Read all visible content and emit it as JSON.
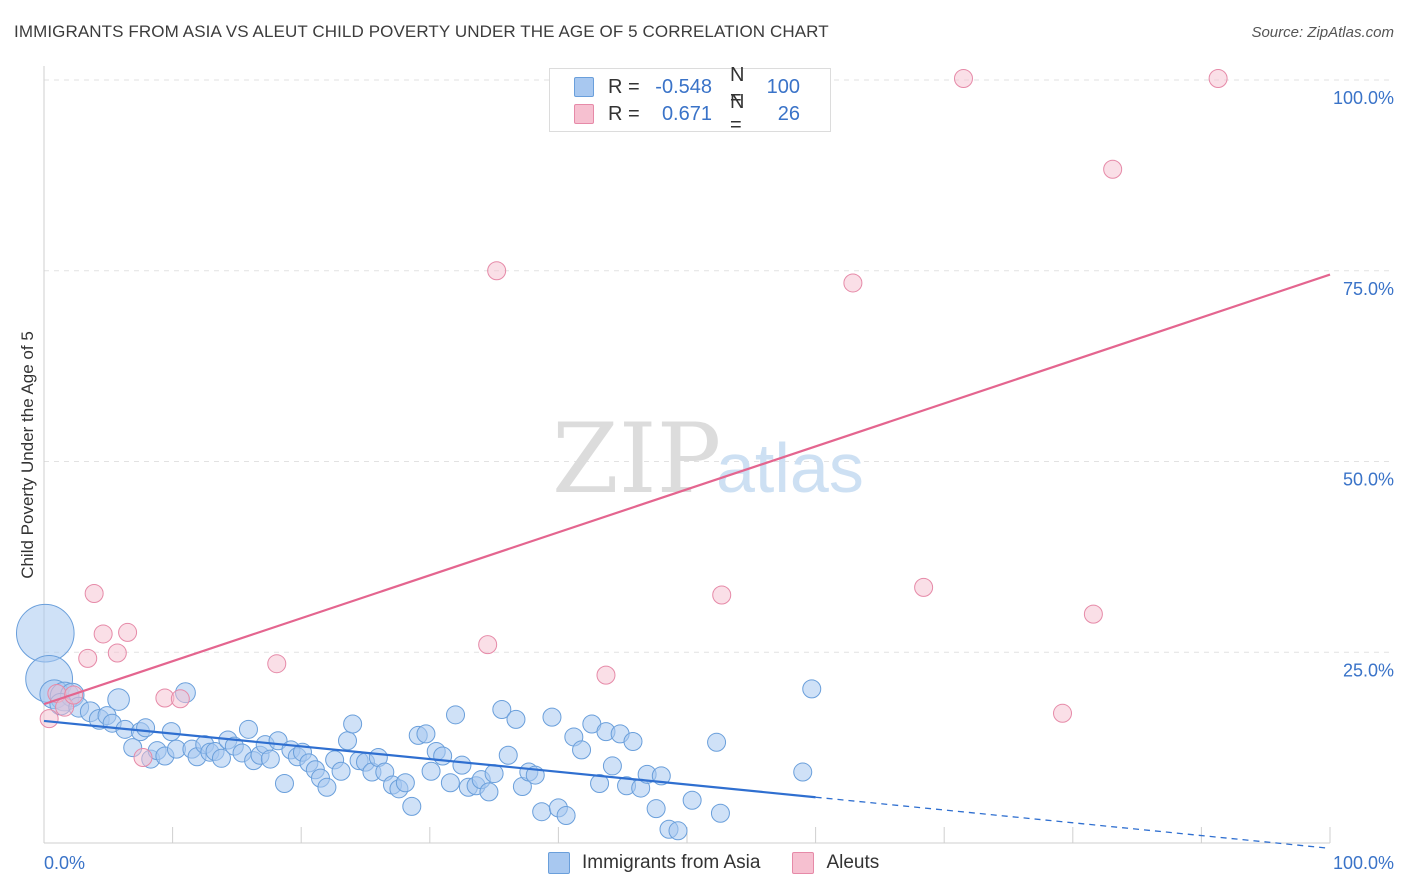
{
  "header": {
    "title": "IMMIGRANTS FROM ASIA VS ALEUT CHILD POVERTY UNDER THE AGE OF 5 CORRELATION CHART",
    "source": "Source: ZipAtlas.com"
  },
  "watermark": {
    "zip": "ZIP",
    "atlas": "atlas"
  },
  "legend_top": {
    "r_label": "R =",
    "n_label": "N =",
    "rows": [
      {
        "r": "-0.548",
        "n": "100"
      },
      {
        "r": "0.671",
        "n": "26"
      }
    ]
  },
  "colors": {
    "asia_fill": "#a8c8f0",
    "asia_stroke": "#6a9fdb",
    "asia_line": "#2f6fd0",
    "aleut_fill": "#f6c0d0",
    "aleut_stroke": "#e68aa8",
    "aleut_line": "#e4658f",
    "tick_label": "#3a73c8",
    "grid": "#e2e2e2"
  },
  "chart_data": {
    "type": "scatter",
    "title": "IMMIGRANTS FROM ASIA VS ALEUT CHILD POVERTY UNDER THE AGE OF 5 CORRELATION CHART",
    "xlabel": "",
    "ylabel": "Child Poverty Under the Age of 5",
    "xlim": [
      0,
      100
    ],
    "ylim": [
      0,
      100
    ],
    "x_tick_labels": [
      "0.0%",
      "100.0%"
    ],
    "y_ticks": [
      25,
      50,
      75,
      100
    ],
    "y_tick_labels": [
      "25.0%",
      "50.0%",
      "75.0%",
      "100.0%"
    ],
    "grid": true,
    "legend_position": "bottom-center",
    "series": [
      {
        "name": "Immigrants from Asia",
        "r": -0.548,
        "n": 100,
        "trend": {
          "x0": 0,
          "y0": 16.0,
          "x1": 60,
          "y1": 6.0,
          "dash_to_x": 100,
          "dash_to_y": -0.7
        },
        "points": [
          [
            0.1,
            27.5,
            3.2
          ],
          [
            0.4,
            21.5,
            2.6
          ],
          [
            0.8,
            19.5,
            1.6
          ],
          [
            1.6,
            19.2,
            1.6
          ],
          [
            2.2,
            19.4,
            1.3
          ],
          [
            1.3,
            18.2,
            1.2
          ],
          [
            2.7,
            17.8,
            1.1
          ],
          [
            3.6,
            17.2,
            1.1
          ],
          [
            4.3,
            16.2,
            1.1
          ],
          [
            4.9,
            16.7,
            1.0
          ],
          [
            5.3,
            15.7,
            1.0
          ],
          [
            5.8,
            18.8,
            1.2
          ],
          [
            6.3,
            14.9,
            1.0
          ],
          [
            6.9,
            12.5,
            1.0
          ],
          [
            7.5,
            14.6,
            1.0
          ],
          [
            7.9,
            15.1,
            1.0
          ],
          [
            8.3,
            11.0,
            1.0
          ],
          [
            8.8,
            12.1,
            1.0
          ],
          [
            9.4,
            11.4,
            1.0
          ],
          [
            9.9,
            14.6,
            1.0
          ],
          [
            10.3,
            12.3,
            1.0
          ],
          [
            11.0,
            19.7,
            1.1
          ],
          [
            11.5,
            12.3,
            1.0
          ],
          [
            11.9,
            11.3,
            1.0
          ],
          [
            12.5,
            12.9,
            1.0
          ],
          [
            12.9,
            11.9,
            1.0
          ],
          [
            13.3,
            12.0,
            1.0
          ],
          [
            13.8,
            11.1,
            1.0
          ],
          [
            14.3,
            13.5,
            1.0
          ],
          [
            14.8,
            12.7,
            1.0
          ],
          [
            15.4,
            11.8,
            1.0
          ],
          [
            15.9,
            14.9,
            1.0
          ],
          [
            16.3,
            10.8,
            1.0
          ],
          [
            16.8,
            11.5,
            1.0
          ],
          [
            17.2,
            12.9,
            1.0
          ],
          [
            17.6,
            11.0,
            1.0
          ],
          [
            18.2,
            13.4,
            1.0
          ],
          [
            18.7,
            7.8,
            1.0
          ],
          [
            19.2,
            12.2,
            1.0
          ],
          [
            19.7,
            11.3,
            1.0
          ],
          [
            20.1,
            11.9,
            1.0
          ],
          [
            20.6,
            10.5,
            1.0
          ],
          [
            21.1,
            9.6,
            1.0
          ],
          [
            21.5,
            8.5,
            1.0
          ],
          [
            22.0,
            7.3,
            1.0
          ],
          [
            22.6,
            10.9,
            1.0
          ],
          [
            23.1,
            9.4,
            1.0
          ],
          [
            23.6,
            13.4,
            1.0
          ],
          [
            24.0,
            15.6,
            1.0
          ],
          [
            24.5,
            10.8,
            1.0
          ],
          [
            25.0,
            10.6,
            1.0
          ],
          [
            25.5,
            9.3,
            1.0
          ],
          [
            26.0,
            11.2,
            1.0
          ],
          [
            26.5,
            9.3,
            1.0
          ],
          [
            27.1,
            7.6,
            1.0
          ],
          [
            27.6,
            7.1,
            1.0
          ],
          [
            28.1,
            7.9,
            1.0
          ],
          [
            28.6,
            4.8,
            1.0
          ],
          [
            29.1,
            14.1,
            1.0
          ],
          [
            29.7,
            14.3,
            1.0
          ],
          [
            30.1,
            9.4,
            1.0
          ],
          [
            30.5,
            12.0,
            1.0
          ],
          [
            31.0,
            11.4,
            1.0
          ],
          [
            31.6,
            7.9,
            1.0
          ],
          [
            32.0,
            16.8,
            1.0
          ],
          [
            32.5,
            10.2,
            1.0
          ],
          [
            33.0,
            7.3,
            1.0
          ],
          [
            33.6,
            7.5,
            1.0
          ],
          [
            34.0,
            8.3,
            1.0
          ],
          [
            34.6,
            6.7,
            1.0
          ],
          [
            35.0,
            9.1,
            1.0
          ],
          [
            35.6,
            17.5,
            1.0
          ],
          [
            36.1,
            11.5,
            1.0
          ],
          [
            36.7,
            16.2,
            1.0
          ],
          [
            37.2,
            7.4,
            1.0
          ],
          [
            37.7,
            9.3,
            1.0
          ],
          [
            38.2,
            8.9,
            1.0
          ],
          [
            38.7,
            4.1,
            1.0
          ],
          [
            39.5,
            16.5,
            1.0
          ],
          [
            40.0,
            4.6,
            1.0
          ],
          [
            40.6,
            3.6,
            1.0
          ],
          [
            41.2,
            13.9,
            1.0
          ],
          [
            41.8,
            12.2,
            1.0
          ],
          [
            42.6,
            15.6,
            1.0
          ],
          [
            43.2,
            7.8,
            1.0
          ],
          [
            43.7,
            14.6,
            1.0
          ],
          [
            44.2,
            10.1,
            1.0
          ],
          [
            44.8,
            14.3,
            1.0
          ],
          [
            45.3,
            7.5,
            1.0
          ],
          [
            45.8,
            13.3,
            1.0
          ],
          [
            46.4,
            7.2,
            1.0
          ],
          [
            46.9,
            9.0,
            1.0
          ],
          [
            47.6,
            4.5,
            1.0
          ],
          [
            48.0,
            8.8,
            1.0
          ],
          [
            48.6,
            1.8,
            1.0
          ],
          [
            49.3,
            1.6,
            1.0
          ],
          [
            50.4,
            5.6,
            1.0
          ],
          [
            52.3,
            13.2,
            1.0
          ],
          [
            52.6,
            3.9,
            1.0
          ],
          [
            59.0,
            9.3,
            1.0
          ],
          [
            59.7,
            20.2,
            1.0
          ]
        ]
      },
      {
        "name": "Aleuts",
        "r": 0.671,
        "n": 26,
        "trend": {
          "x0": 0,
          "y0": 18.2,
          "x1": 100,
          "y1": 74.5
        },
        "points": [
          [
            0.4,
            16.3,
            1.0
          ],
          [
            1.0,
            19.6,
            1.0
          ],
          [
            1.6,
            17.8,
            1.0
          ],
          [
            2.3,
            19.4,
            1.0
          ],
          [
            3.4,
            24.2,
            1.0
          ],
          [
            3.9,
            32.7,
            1.0
          ],
          [
            4.6,
            27.4,
            1.0
          ],
          [
            5.7,
            24.9,
            1.0
          ],
          [
            6.5,
            27.6,
            1.0
          ],
          [
            7.7,
            11.2,
            1.0
          ],
          [
            9.4,
            19.0,
            1.0
          ],
          [
            10.6,
            18.9,
            1.0
          ],
          [
            18.1,
            23.5,
            1.0
          ],
          [
            34.5,
            26.0,
            1.0
          ],
          [
            35.2,
            75.0,
            1.0
          ],
          [
            43.7,
            22.0,
            1.0
          ],
          [
            52.7,
            32.5,
            1.0
          ],
          [
            62.9,
            73.4,
            1.0
          ],
          [
            68.4,
            33.5,
            1.0
          ],
          [
            71.5,
            100.2,
            1.0
          ],
          [
            79.2,
            17.0,
            1.0
          ],
          [
            81.6,
            30.0,
            1.0
          ],
          [
            83.1,
            88.3,
            1.0
          ],
          [
            91.3,
            100.2,
            1.0
          ]
        ]
      }
    ]
  }
}
